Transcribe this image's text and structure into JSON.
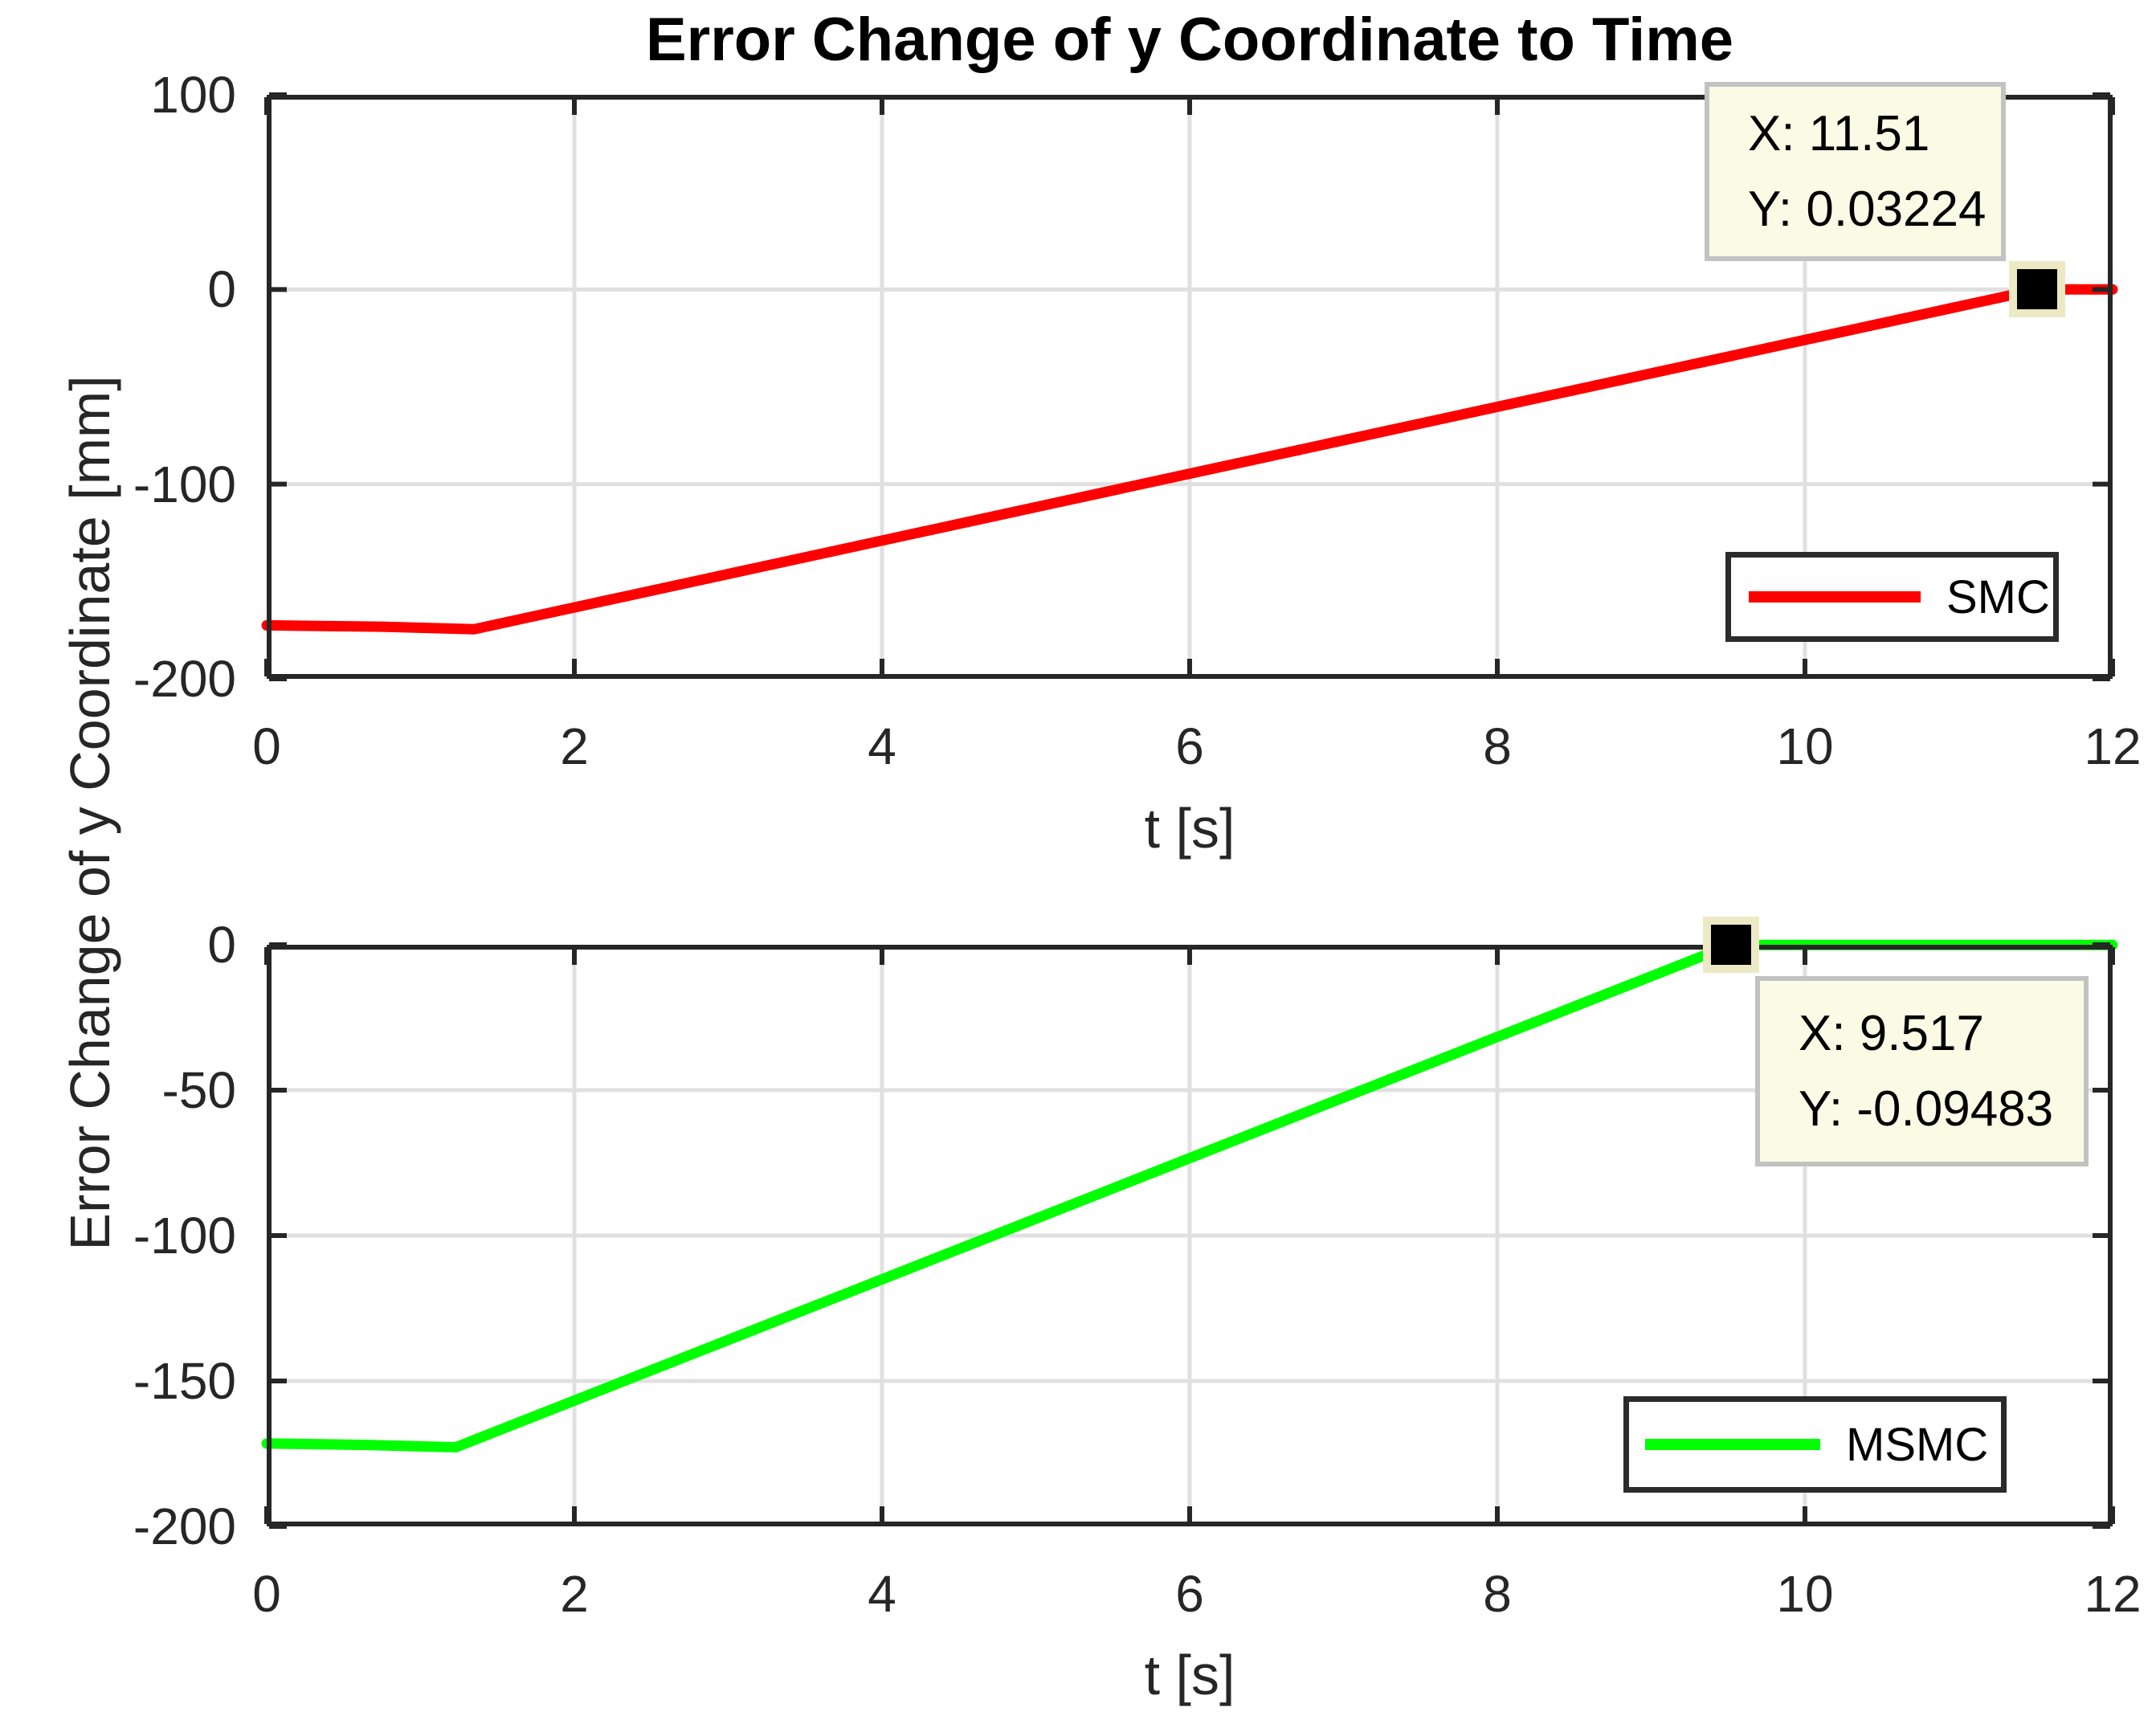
{
  "figure": {
    "title": "Error Change of y Coordinate to Time",
    "ylabel_shared": "Error Change of y Coordinate [mm]"
  },
  "colors": {
    "axis": "#262626",
    "grid": "#e0e0e0",
    "tick_text": "#262626",
    "smc_line": "#ff0000",
    "msmc_line": "#00ff00",
    "datatip_bg": "#fbfae4",
    "datatip_border": "#c2c2c2",
    "marker_fill": "#000000",
    "marker_edge": "#ede9c5",
    "legend_border": "#2b2b2b"
  },
  "chart_data": [
    {
      "type": "line",
      "title": "Error Change of y Coordinate to Time",
      "xlabel": "t [s]",
      "ylabel": "Error Change of y Coordinate [mm]",
      "xlim": [
        0,
        12
      ],
      "ylim": [
        -200,
        100
      ],
      "xticks": [
        0,
        2,
        4,
        6,
        8,
        10,
        12
      ],
      "yticks": [
        100,
        0,
        -100,
        -200
      ],
      "grid": true,
      "legend": {
        "label": "SMC",
        "position": "southeast"
      },
      "series": [
        {
          "name": "SMC",
          "color": "#ff0000",
          "points": [
            [
              0,
              -172.5
            ],
            [
              0.75,
              -173.2
            ],
            [
              1.35,
              -174.5
            ],
            [
              11.51,
              0.03224
            ],
            [
              12,
              0.03224
            ]
          ]
        }
      ],
      "datatip": {
        "text_x": "X: 11.51",
        "text_y": "Y: 0.03224",
        "x": 11.51,
        "y": 0.03224
      }
    },
    {
      "type": "line",
      "title": "",
      "xlabel": "t [s]",
      "ylabel": "Error Change of y Coordinate [mm]",
      "xlim": [
        0,
        12
      ],
      "ylim": [
        -200,
        0
      ],
      "xticks": [
        0,
        2,
        4,
        6,
        8,
        10,
        12
      ],
      "yticks": [
        0,
        -50,
        -100,
        -150,
        -200
      ],
      "grid": true,
      "legend": {
        "label": "MSMC",
        "position": "southeast"
      },
      "series": [
        {
          "name": "MSMC",
          "color": "#00ff00",
          "points": [
            [
              0,
              -171.5
            ],
            [
              0.65,
              -172
            ],
            [
              1.23,
              -172.8
            ],
            [
              9.517,
              -0.09483
            ],
            [
              12,
              -0.09483
            ]
          ]
        }
      ],
      "datatip": {
        "text_x": "X: 9.517",
        "text_y": "Y: -0.09483",
        "x": 9.517,
        "y": -0.09483
      }
    }
  ]
}
